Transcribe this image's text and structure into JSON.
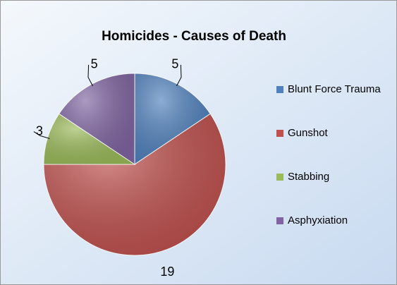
{
  "chart_data": {
    "type": "pie",
    "title": "Homicides - Causes of Death",
    "categories": [
      "Blunt Force Trauma",
      "Gunshot",
      "Stabbing",
      "Asphyxiation"
    ],
    "values": [
      5,
      19,
      3,
      5
    ],
    "colors": [
      "#4f81bd",
      "#c0504d",
      "#9bbb59",
      "#8064a2"
    ],
    "legend": "right"
  }
}
